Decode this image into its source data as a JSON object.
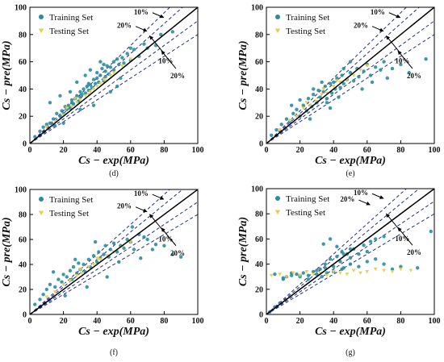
{
  "legend": {
    "training": "Training Set",
    "testing": "Testing Set"
  },
  "colors": {
    "training": "#2b8c9e",
    "testing": "#e2cf53",
    "bounds": "#1f2e86",
    "ideal": "#000000"
  },
  "chart_data": [
    {
      "type": "scatter",
      "caption": "(d)",
      "xlabel": "Cs − exp(MPa)",
      "ylabel": "Cs − pre(MPa)",
      "xlim": [
        0,
        100
      ],
      "ylim": [
        0,
        100
      ],
      "x_ticks": [
        0,
        20,
        40,
        60,
        80,
        100
      ],
      "y_ticks": [
        0,
        20,
        40,
        60,
        80,
        100
      ],
      "band_labels": [
        "10%",
        "20%",
        "10%",
        "20%"
      ],
      "series": [
        {
          "name": "Training Set",
          "x": [
            3,
            6,
            8,
            10,
            12,
            14,
            15,
            16,
            18,
            19,
            20,
            21,
            22,
            23,
            24,
            25,
            25,
            26,
            27,
            28,
            29,
            30,
            30,
            31,
            32,
            33,
            34,
            35,
            35,
            36,
            37,
            38,
            39,
            40,
            40,
            41,
            42,
            43,
            44,
            45,
            45,
            46,
            47,
            48,
            50,
            50,
            52,
            53,
            55,
            56,
            58,
            60,
            62,
            65,
            68,
            70,
            75,
            78,
            85,
            12,
            18,
            24,
            30,
            36,
            42,
            48,
            54,
            60,
            20,
            28,
            33,
            38,
            44,
            52
          ],
          "y": [
            5,
            9,
            12,
            14,
            15,
            18,
            13,
            22,
            20,
            24,
            22,
            27,
            25,
            28,
            26,
            32,
            30,
            29,
            33,
            35,
            31,
            38,
            34,
            36,
            40,
            37,
            42,
            39,
            44,
            43,
            41,
            47,
            44,
            48,
            52,
            45,
            50,
            55,
            46,
            53,
            49,
            57,
            51,
            56,
            60,
            54,
            62,
            58,
            63,
            59,
            66,
            61,
            69,
            64,
            73,
            70,
            72,
            80,
            82,
            30,
            35,
            38,
            25,
            54,
            60,
            38,
            48,
            70,
            15,
            45,
            50,
            28,
            58,
            42
          ]
        },
        {
          "name": "Testing Set",
          "x": [
            10,
            15,
            20,
            25,
            28,
            30,
            33,
            35,
            38,
            40,
            42,
            45,
            48,
            50,
            55,
            60,
            22,
            27,
            36,
            44
          ],
          "y": [
            12,
            16,
            21,
            27,
            30,
            32,
            35,
            36,
            40,
            42,
            44,
            46,
            50,
            52,
            57,
            62,
            26,
            33,
            38,
            47
          ]
        }
      ]
    },
    {
      "type": "scatter",
      "caption": "(e)",
      "xlabel": "Cs − exp(MPa)",
      "ylabel": "Cs − pre(MPa)",
      "xlim": [
        0,
        100
      ],
      "ylim": [
        0,
        100
      ],
      "x_ticks": [
        0,
        20,
        40,
        60,
        80,
        100
      ],
      "y_ticks": [
        0,
        20,
        40,
        60,
        80,
        100
      ],
      "band_labels": [
        "10%",
        "20%",
        "10%",
        "20%"
      ],
      "series": [
        {
          "name": "Training Set",
          "x": [
            3,
            6,
            9,
            12,
            14,
            16,
            18,
            20,
            22,
            24,
            25,
            27,
            28,
            30,
            31,
            32,
            34,
            35,
            36,
            38,
            39,
            40,
            41,
            42,
            44,
            45,
            46,
            48,
            50,
            52,
            54,
            55,
            58,
            60,
            62,
            65,
            68,
            70,
            75,
            80,
            85,
            95,
            15,
            20,
            26,
            33,
            38,
            43,
            50,
            57,
            63,
            72,
            28,
            36,
            46
          ],
          "y": [
            6,
            10,
            14,
            18,
            16,
            22,
            25,
            20,
            28,
            24,
            33,
            27,
            36,
            30,
            39,
            34,
            38,
            42,
            33,
            44,
            37,
            45,
            40,
            48,
            41,
            50,
            44,
            47,
            52,
            46,
            55,
            49,
            53,
            58,
            50,
            56,
            54,
            60,
            55,
            58,
            52,
            62,
            28,
            32,
            18,
            45,
            26,
            34,
            60,
            40,
            45,
            48,
            40,
            30,
            55
          ]
        },
        {
          "name": "Testing Set",
          "x": [
            8,
            14,
            18,
            22,
            26,
            30,
            33,
            36,
            40,
            44,
            48,
            52,
            56,
            60,
            24,
            34,
            42
          ],
          "y": [
            10,
            17,
            20,
            26,
            28,
            31,
            36,
            37,
            42,
            45,
            47,
            50,
            54,
            57,
            30,
            40,
            46
          ]
        }
      ]
    },
    {
      "type": "scatter",
      "caption": "(f)",
      "xlabel": "Cs − exp(MPa)",
      "ylabel": "Cs − pre(MPa)",
      "xlim": [
        0,
        100
      ],
      "ylim": [
        0,
        100
      ],
      "x_ticks": [
        0,
        20,
        40,
        60,
        80,
        100
      ],
      "y_ticks": [
        0,
        20,
        40,
        60,
        80,
        100
      ],
      "band_labels": [
        "10%",
        "20%",
        "10%",
        "20%"
      ],
      "series": [
        {
          "name": "Training Set",
          "x": [
            3,
            6,
            8,
            10,
            12,
            15,
            17,
            19,
            20,
            22,
            24,
            25,
            26,
            28,
            29,
            30,
            32,
            33,
            35,
            36,
            38,
            40,
            41,
            42,
            44,
            45,
            47,
            48,
            50,
            52,
            54,
            56,
            58,
            60,
            62,
            65,
            68,
            70,
            75,
            80,
            85,
            90,
            14,
            21,
            27,
            34,
            39,
            46,
            53,
            61,
            66,
            73
          ],
          "y": [
            8,
            12,
            16,
            20,
            24,
            22,
            28,
            26,
            32,
            30,
            35,
            28,
            38,
            33,
            41,
            36,
            40,
            34,
            44,
            38,
            47,
            42,
            50,
            45,
            48,
            55,
            46,
            52,
            57,
            50,
            55,
            53,
            60,
            58,
            52,
            64,
            62,
            60,
            56,
            55,
            48,
            46,
            34,
            15,
            44,
            22,
            58,
            30,
            42,
            70,
            45,
            52
          ]
        },
        {
          "name": "Testing Set",
          "x": [
            10,
            15,
            20,
            24,
            28,
            31,
            35,
            38,
            42,
            46,
            50,
            55,
            60,
            30,
            40
          ],
          "y": [
            14,
            18,
            24,
            27,
            31,
            33,
            38,
            40,
            44,
            47,
            50,
            54,
            58,
            36,
            45
          ]
        }
      ]
    },
    {
      "type": "scatter",
      "caption": "(g)",
      "xlabel": "Cs − exp(MPa)",
      "ylabel": "Cs − pre(MPa)",
      "xlim": [
        0,
        100
      ],
      "ylim": [
        0,
        100
      ],
      "x_ticks": [
        0,
        20,
        40,
        60,
        80,
        100
      ],
      "y_ticks": [
        0,
        20,
        40,
        60,
        80,
        100
      ],
      "band_labels": [
        "20%",
        "10%",
        "10%",
        "20%"
      ],
      "series": [
        {
          "name": "Training Set",
          "x": [
            2,
            5,
            8,
            10,
            12,
            15,
            18,
            20,
            22,
            25,
            28,
            30,
            32,
            33,
            35,
            36,
            38,
            40,
            42,
            44,
            45,
            46,
            48,
            50,
            52,
            55,
            58,
            60,
            62,
            65,
            70,
            75,
            80,
            90,
            98,
            5,
            10,
            15,
            20,
            25,
            30,
            35,
            40,
            45,
            50,
            55,
            60,
            65,
            70,
            34,
            38,
            42,
            46,
            50
          ],
          "y": [
            2,
            6,
            9,
            28,
            30,
            31,
            32,
            30,
            33,
            31,
            34,
            32,
            36,
            30,
            40,
            33,
            44,
            38,
            46,
            42,
            50,
            37,
            48,
            45,
            52,
            48,
            55,
            50,
            58,
            60,
            62,
            36,
            38,
            37,
            66,
            32,
            29,
            33,
            31,
            28,
            35,
            37,
            34,
            36,
            40,
            38,
            42,
            44,
            40,
            56,
            60,
            54,
            48,
            52
          ]
        },
        {
          "name": "Testing Set",
          "x": [
            3,
            8,
            12,
            16,
            20,
            24,
            28,
            32,
            36,
            40,
            44,
            48,
            52,
            56,
            60,
            65,
            70,
            75,
            80,
            86
          ],
          "y": [
            31,
            32,
            30,
            33,
            31,
            34,
            32,
            33,
            31,
            34,
            33,
            32,
            35,
            33,
            34,
            36,
            35,
            34,
            36,
            35
          ]
        }
      ]
    }
  ]
}
